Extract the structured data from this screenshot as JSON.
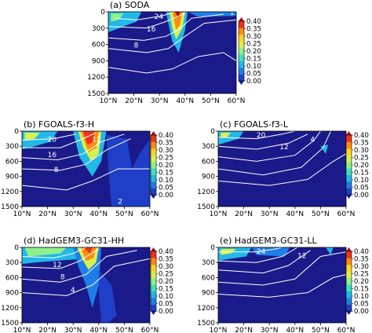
{
  "colorbar": {
    "ticks": [
      "0.40",
      "0.35",
      "0.30",
      "0.25",
      "0.20",
      "0.15",
      "0.10",
      "0.05",
      "0.00"
    ],
    "colors": [
      "#1a1a8a",
      "#1f3fc8",
      "#1f7fe8",
      "#22b8e8",
      "#3fe0c0",
      "#8ef08a",
      "#d8f050",
      "#ffd21f",
      "#ff8a10",
      "#f0321a",
      "#a8101a"
    ]
  },
  "chart_data": [
    {
      "type": "heatmap",
      "title": "(a) SODA",
      "x_ticks": [
        "10°N",
        "20°N",
        "30°N",
        "40°N",
        "50°N",
        "60°N"
      ],
      "y_ticks": [
        "0",
        "300",
        "600",
        "900",
        "1200",
        "1500"
      ],
      "xlim": [
        10,
        60
      ],
      "ylim": [
        1500,
        0
      ],
      "contour_labels": [
        "24",
        "16",
        "8",
        "1"
      ],
      "colorbar_range": [
        0.0,
        0.4
      ]
    },
    {
      "type": "heatmap",
      "title": "(b) FGOALS-f3-H",
      "x_ticks": [
        "10°N",
        "20°N",
        "30°N",
        "40°N",
        "50°N",
        "60°N"
      ],
      "y_ticks": [
        "0",
        "300",
        "600",
        "900",
        "1200",
        "1500"
      ],
      "xlim": [
        10,
        60
      ],
      "ylim": [
        1500,
        0
      ],
      "contour_labels": [
        "20",
        "16",
        "8",
        "12",
        "2"
      ],
      "colorbar_range": [
        0.0,
        0.4
      ]
    },
    {
      "type": "heatmap",
      "title": "(c) FGOALS-f3-L",
      "x_ticks": [
        "10°N",
        "20°N",
        "30°N",
        "40°N",
        "50°N",
        "60°N"
      ],
      "y_ticks": [
        "0",
        "300",
        "600",
        "900",
        "1200",
        "1500"
      ],
      "xlim": [
        10,
        60
      ],
      "ylim": [
        1500,
        0
      ],
      "contour_labels": [
        "20",
        "12",
        "4"
      ],
      "colorbar_range": [
        0.0,
        0.4
      ]
    },
    {
      "type": "heatmap",
      "title": "(d) HadGEM3-GC31-HH",
      "x_ticks": [
        "10°N",
        "20°N",
        "30°N",
        "40°N",
        "50°N",
        "60°N"
      ],
      "y_ticks": [
        "0",
        "300",
        "600",
        "900",
        "1200",
        "1500"
      ],
      "xlim": [
        10,
        60
      ],
      "ylim": [
        1500,
        0
      ],
      "contour_labels": [
        "12",
        "8",
        "4"
      ],
      "colorbar_range": [
        0.0,
        0.4
      ]
    },
    {
      "type": "heatmap",
      "title": "(e) HadGEM3-GC31-LL",
      "x_ticks": [
        "10°N",
        "20°N",
        "30°N",
        "40°N",
        "50°N",
        "60°N"
      ],
      "y_ticks": [
        "0",
        "300",
        "600",
        "900",
        "1200",
        "1500"
      ],
      "xlim": [
        10,
        60
      ],
      "ylim": [
        1500,
        0
      ],
      "contour_labels": [
        "24",
        "12"
      ],
      "colorbar_range": [
        0.0,
        0.4
      ]
    }
  ]
}
